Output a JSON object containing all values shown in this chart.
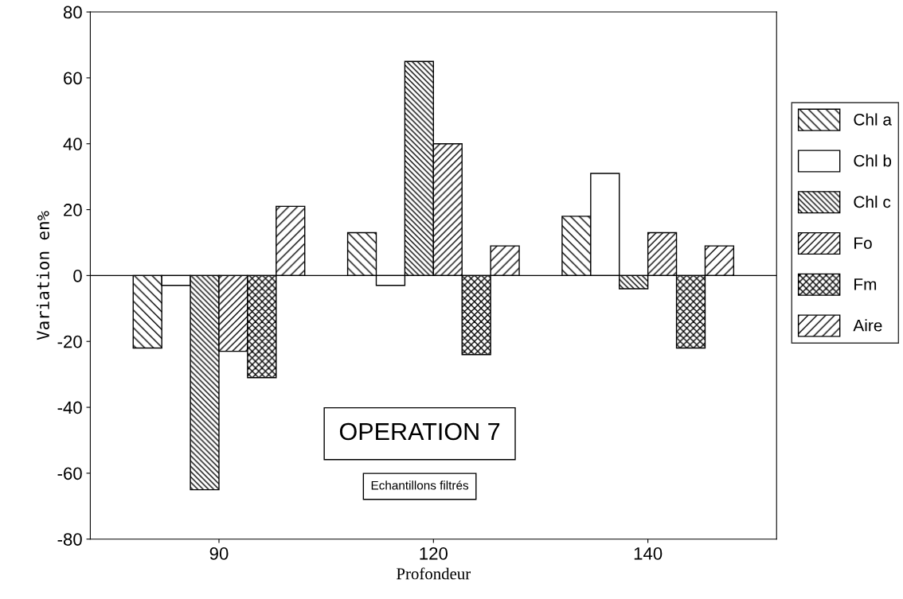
{
  "chart_data": {
    "type": "bar",
    "xlabel": "Profondeur",
    "ylabel": "Variation en%",
    "categories": [
      "90",
      "120",
      "140"
    ],
    "series": [
      {
        "name": "Chl a",
        "color": "#000000",
        "values": [
          -22,
          13,
          18
        ]
      },
      {
        "name": "Chl b",
        "color": "#000000",
        "values": [
          -3,
          -3,
          31
        ]
      },
      {
        "name": "Chl c",
        "color": "#000000",
        "values": [
          -65,
          65,
          -4
        ]
      },
      {
        "name": "Fo",
        "color": "#000000",
        "values": [
          -23,
          40,
          13
        ]
      },
      {
        "name": "Fm",
        "color": "#000000",
        "values": [
          -31,
          -24,
          -22
        ]
      },
      {
        "name": "Aire",
        "color": "#000000",
        "values": [
          21,
          9,
          9
        ]
      }
    ],
    "ylim": [
      -80,
      80
    ],
    "yticks": [
      -80,
      -60,
      -40,
      -20,
      0,
      20,
      40,
      60,
      80
    ],
    "annotations": [
      "OPERATION 7",
      "Echantillons filtrés"
    ],
    "ref_lines": [
      {
        "axis": "y",
        "value": 0,
        "color": "#000000"
      }
    ],
    "legend": "right"
  }
}
